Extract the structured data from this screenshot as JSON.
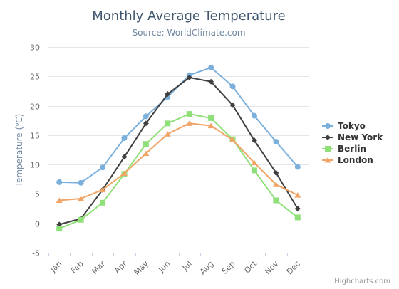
{
  "chart_data": {
    "type": "line",
    "title": "Monthly Average Temperature",
    "subtitle": "Source: WorldClimate.com",
    "xlabel": "",
    "ylabel": "Temperature (℃)",
    "categories": [
      "Jan",
      "Feb",
      "Mar",
      "Apr",
      "May",
      "Jun",
      "Jul",
      "Aug",
      "Sep",
      "Oct",
      "Nov",
      "Dec"
    ],
    "ylim": [
      -5,
      30
    ],
    "yticks": [
      -5,
      0,
      5,
      10,
      15,
      20,
      25,
      30
    ],
    "grid": true,
    "legend_position": "right",
    "series": [
      {
        "name": "Tokyo",
        "color": "#7cb0dc",
        "marker": "circle",
        "values": [
          7.0,
          6.9,
          9.5,
          14.5,
          18.2,
          21.5,
          25.2,
          26.5,
          23.3,
          18.3,
          13.9,
          9.6
        ]
      },
      {
        "name": "New York",
        "color": "#404040",
        "marker": "diamond",
        "values": [
          -0.2,
          0.8,
          5.7,
          11.3,
          17.0,
          22.0,
          24.8,
          24.1,
          20.1,
          14.1,
          8.6,
          2.5
        ]
      },
      {
        "name": "Berlin",
        "color": "#90e07a",
        "marker": "square",
        "values": [
          -0.9,
          0.6,
          3.5,
          8.4,
          13.5,
          17.0,
          18.6,
          17.9,
          14.3,
          9.0,
          3.9,
          1.0
        ]
      },
      {
        "name": "London",
        "color": "#f0a465",
        "marker": "triangle",
        "values": [
          3.9,
          4.2,
          5.7,
          8.5,
          11.9,
          15.2,
          17.0,
          16.6,
          14.2,
          10.3,
          6.6,
          4.8
        ]
      }
    ]
  },
  "credits": "Highcharts.com"
}
